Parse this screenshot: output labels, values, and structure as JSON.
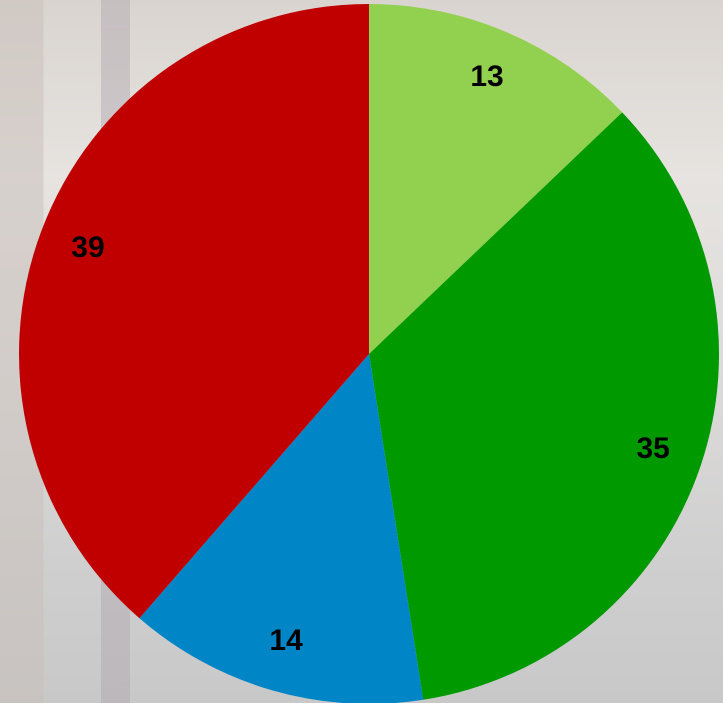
{
  "chart_data": {
    "type": "pie",
    "categories": [
      null,
      null,
      null,
      null
    ],
    "values": [
      13,
      35,
      14,
      39
    ],
    "colors": [
      "#92d050",
      "#009a00",
      "#0086c6",
      "#c00000"
    ],
    "start_angle": 0,
    "direction": "clockwise"
  }
}
